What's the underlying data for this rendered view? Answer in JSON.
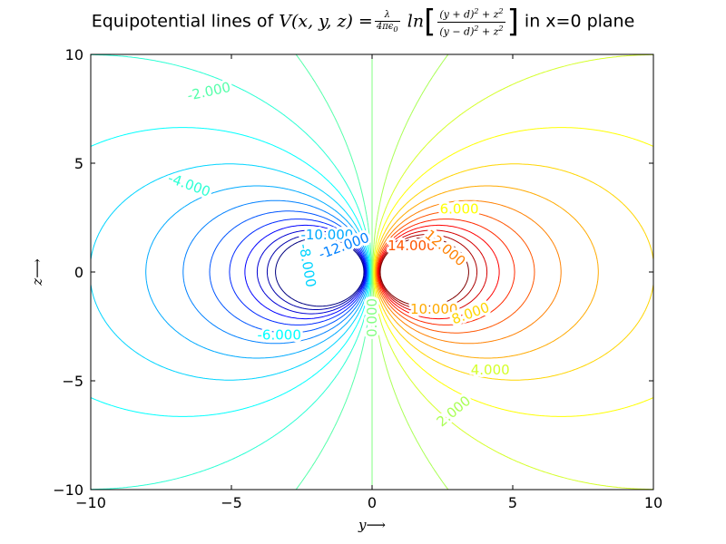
{
  "chart_data": {
    "type": "contour",
    "title": {
      "prefix": "Equipotential lines of",
      "func": "V(x, y, z) =",
      "coef_num": "λ",
      "coef_den": "4πϵ",
      "coef_den_sub": "0",
      "ln": "ln",
      "arg_num": "(y + d)",
      "arg_num_tail": "+ z",
      "arg_den": "(y − d)",
      "arg_den_tail": "+ z",
      "sup2": "2",
      "suffix": "in x=0 plane"
    },
    "xlabel": "y⟶",
    "ylabel": "z⟶",
    "xlim": [
      -10,
      10
    ],
    "ylim": [
      -10,
      10
    ],
    "xticks": [
      -10,
      -5,
      0,
      5,
      10
    ],
    "yticks": [
      -10,
      -5,
      0,
      5,
      10
    ],
    "xtick_labels": [
      "−10",
      "−5",
      "0",
      "5",
      "10"
    ],
    "ytick_labels": [
      "−10",
      "−5",
      "0",
      "5",
      "10"
    ],
    "d": 1,
    "colormap": "jet",
    "vmin": -24,
    "vmax": 24,
    "levels": [
      -24,
      -22,
      -20,
      -18,
      -16,
      -14,
      -12,
      -10,
      -8,
      -6,
      -4,
      -2,
      0,
      2,
      4,
      6,
      8,
      10,
      12,
      14,
      16,
      18,
      20,
      22,
      24
    ],
    "charge_markers": [
      {
        "y": -1,
        "z": 0,
        "color": "#ffffff"
      },
      {
        "y": 1,
        "z": 0,
        "color": "#ffffff"
      }
    ],
    "contour_labels": [
      {
        "text": "-2.000",
        "y": -5.8,
        "z": 8.3,
        "rotation": 12
      },
      {
        "text": "-4.000",
        "y": -6.5,
        "z": 4.0,
        "rotation": -20
      },
      {
        "text": "-8.000",
        "y": -2.3,
        "z": 0.3,
        "rotation": -80
      },
      {
        "text": "-10.000",
        "y": -1.6,
        "z": 1.7,
        "rotation": 0
      },
      {
        "text": "-12.000",
        "y": -1.0,
        "z": 1.2,
        "rotation": 20
      },
      {
        "text": "-6.000",
        "y": -3.3,
        "z": -2.9,
        "rotation": 0
      },
      {
        "text": "0.000",
        "y": 0.0,
        "z": -2.1,
        "rotation": 90
      },
      {
        "text": "6.000",
        "y": 3.1,
        "z": 2.9,
        "rotation": 0
      },
      {
        "text": "14.000",
        "y": 1.4,
        "z": 1.2,
        "rotation": 0
      },
      {
        "text": "12.000",
        "y": 2.6,
        "z": 1.1,
        "rotation": -40
      },
      {
        "text": "10.000",
        "y": 2.2,
        "z": -1.7,
        "rotation": 0
      },
      {
        "text": "8.000",
        "y": 3.5,
        "z": -1.9,
        "rotation": 20
      },
      {
        "text": "4.000",
        "y": 4.2,
        "z": -4.5,
        "rotation": 0
      },
      {
        "text": "2.000",
        "y": 2.9,
        "z": -6.4,
        "rotation": 40
      }
    ]
  }
}
